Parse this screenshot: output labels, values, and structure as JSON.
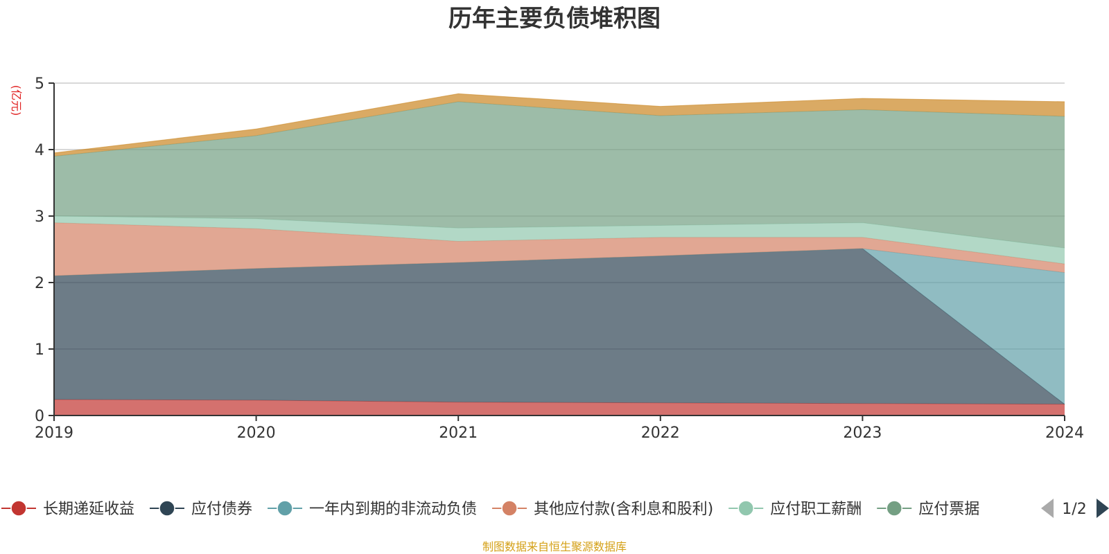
{
  "chart_data": {
    "type": "area",
    "stacked": true,
    "title": "历年主要负债堆积图",
    "ylabel": "(亿元)",
    "ylim": [
      0,
      5
    ],
    "yticks": [
      "0",
      "1",
      "2",
      "3",
      "4",
      "5"
    ],
    "categories": [
      "2019",
      "2020",
      "2021",
      "2022",
      "2023",
      "2024"
    ],
    "grid": true,
    "legend_position": "bottom",
    "series": [
      {
        "name": "长期递延收益",
        "color": "#c23531",
        "values": [
          0.24,
          0.23,
          0.2,
          0.19,
          0.18,
          0.17
        ]
      },
      {
        "name": "应付债券",
        "color": "#2f4554",
        "values": [
          1.86,
          1.98,
          2.1,
          2.21,
          2.33,
          0.0
        ]
      },
      {
        "name": "一年内到期的非流动负债",
        "color": "#61a0a8",
        "values": [
          0.0,
          0.0,
          0.0,
          0.0,
          0.0,
          1.98
        ]
      },
      {
        "name": "其他应付款(含利息和股利)",
        "color": "#d48265",
        "values": [
          0.8,
          0.6,
          0.32,
          0.28,
          0.17,
          0.13
        ]
      },
      {
        "name": "应付职工薪酬",
        "color": "#91c7ae",
        "values": [
          0.1,
          0.15,
          0.2,
          0.18,
          0.22,
          0.24
        ]
      },
      {
        "name": "应付票据",
        "color": "#749f83",
        "values": [
          0.9,
          1.25,
          1.9,
          1.65,
          1.7,
          1.98
        ]
      },
      {
        "name": "",
        "color": "#ca8622",
        "values": [
          0.05,
          0.1,
          0.12,
          0.14,
          0.17,
          0.22
        ]
      }
    ]
  },
  "legend": {
    "items": [
      "长期递延收益",
      "应付债券",
      "一年内到期的非流动负债",
      "其他应付款(含利息和股利)",
      "应付职工薪酬",
      "应付票据"
    ],
    "page_text": "1/2"
  },
  "source_note": "制图数据来自恒生聚源数据库",
  "colors": {
    "axis": "#333333",
    "grid": "#cccccc",
    "unit": "#e02020",
    "source": "#d4a017",
    "pager_active": "#2f4554",
    "pager_inactive": "#aaaaaa"
  }
}
